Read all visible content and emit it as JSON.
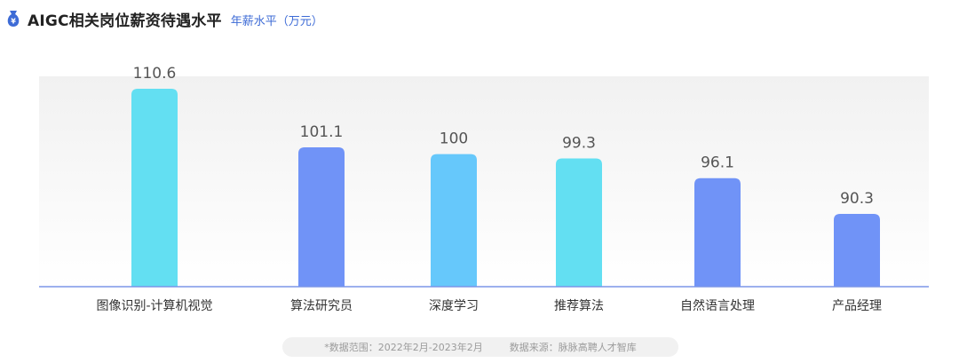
{
  "header": {
    "title": "AIGC相关岗位薪资待遇水平",
    "subtitle": "年薪水平（万元）",
    "icon": "money-bag-icon"
  },
  "colors": {
    "accent": "#3d6bd6",
    "cyan_bar": "#63dff2",
    "blue_bar": "#7093f7",
    "light_blue_bar": "#66c8fb",
    "axis": "#7b96e8"
  },
  "chart_data": {
    "type": "bar",
    "title": "AIGC相关岗位薪资待遇水平",
    "subtitle": "年薪水平（万元）",
    "categories": [
      "图像识别-计算机视觉",
      "算法研究员",
      "深度学习",
      "推荐算法",
      "自然语言处理",
      "产品经理"
    ],
    "values": [
      110.6,
      101.1,
      100,
      99.3,
      96.1,
      90.3
    ],
    "value_labels": [
      "110.6",
      "101.1",
      "100",
      "99.3",
      "96.1",
      "90.3"
    ],
    "bar_colors": [
      "#63dff2",
      "#7093f7",
      "#66c8fb",
      "#63dff2",
      "#7093f7",
      "#7093f7"
    ],
    "xlabel": "",
    "ylabel": "",
    "grid": false,
    "legend": "none"
  },
  "footer": {
    "period": "*数据范围：2022年2月-2023年2月",
    "source": "数据来源：脉脉高聘人才智库"
  }
}
